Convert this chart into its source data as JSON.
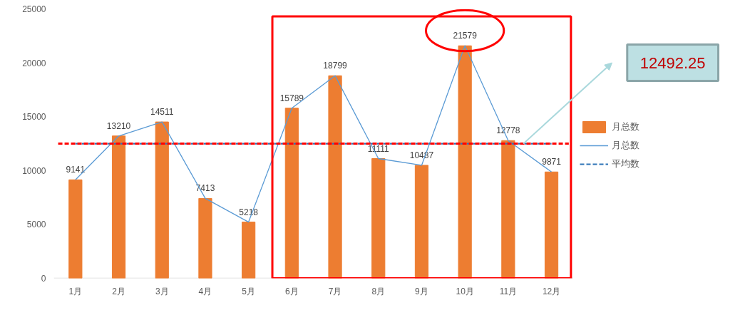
{
  "chart_data": {
    "type": "bar",
    "categories": [
      "1月",
      "2月",
      "3月",
      "4月",
      "5月",
      "6月",
      "7月",
      "8月",
      "9月",
      "10月",
      "11月",
      "12月"
    ],
    "series": [
      {
        "name": "月总数",
        "color": "#ed7d31",
        "values": [
          9141,
          13210,
          14511,
          7413,
          5218,
          15789,
          18799,
          11111,
          10487,
          21579,
          12778,
          9871
        ],
        "value_labels": [
          "9141",
          "13210",
          "14511",
          "7413",
          "5218",
          "15789",
          "18799",
          "11111",
          "10487",
          "21579",
          "12778",
          "9871"
        ]
      },
      {
        "name": "月总数",
        "type": "line",
        "color": "#5b9bd5",
        "values": [
          9141,
          13210,
          14511,
          7413,
          5218,
          15789,
          18799,
          11111,
          10487,
          21579,
          12778,
          9871
        ]
      },
      {
        "name": "平均数",
        "type": "line",
        "color": "#2e75b6",
        "line_style": "dashed",
        "values": [
          12492.25,
          12492.25,
          12492.25,
          12492.25,
          12492.25,
          12492.25,
          12492.25,
          12492.25,
          12492.25,
          12492.25,
          12492.25,
          12492.25
        ]
      }
    ],
    "ref_lines": [
      {
        "axis": "y",
        "value": 12492.25,
        "color": "#ff0000",
        "line_style": "dashed"
      }
    ],
    "annotations": [
      "12492.25"
    ],
    "ylim": [
      0,
      25000
    ],
    "yticks": [
      0,
      5000,
      10000,
      15000,
      20000,
      25000
    ],
    "grid": false,
    "legend": "right"
  }
}
